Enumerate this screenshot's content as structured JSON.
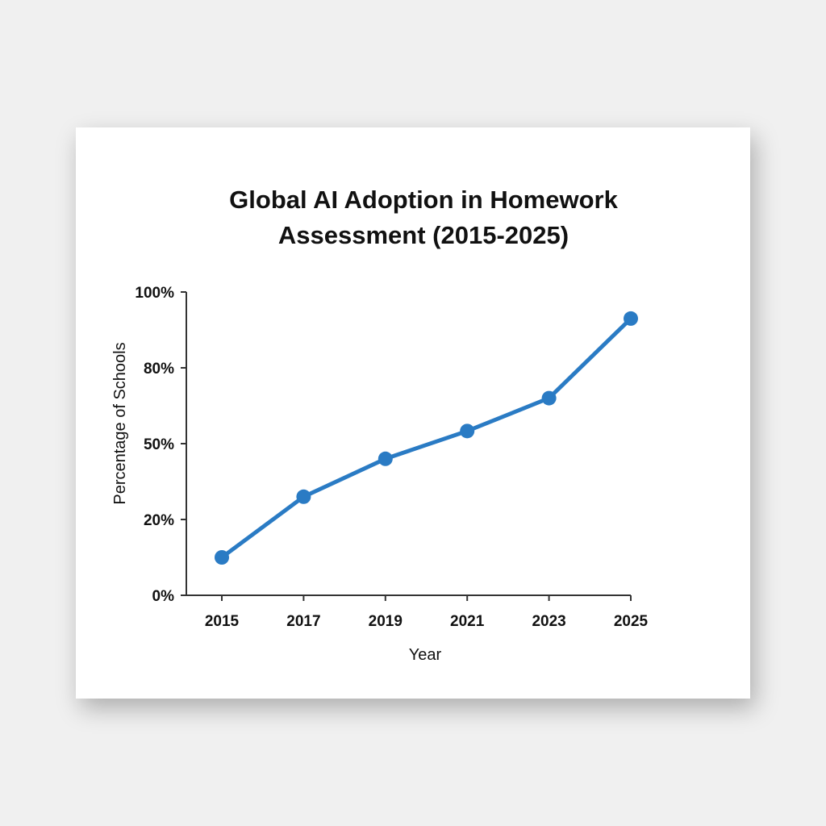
{
  "chart_data": {
    "type": "line",
    "title_lines": [
      "Global AI Adoption in Homework",
      "Assessment (2015-2025)"
    ],
    "xlabel": "Year",
    "ylabel": "Percentage of Schools",
    "x": [
      "2015",
      "2017",
      "2019",
      "2021",
      "2023",
      "2025"
    ],
    "series": [
      {
        "values": [
          10,
          29,
          44,
          55,
          68,
          93
        ]
      }
    ],
    "y_ticks": [
      0,
      20,
      50,
      80,
      100
    ],
    "y_tick_labels": [
      "0%",
      "20%",
      "50%",
      "80%",
      "100%"
    ],
    "ylim": [
      0,
      100
    ],
    "grid": false,
    "colors": {
      "line": "#2a7bc4"
    }
  }
}
